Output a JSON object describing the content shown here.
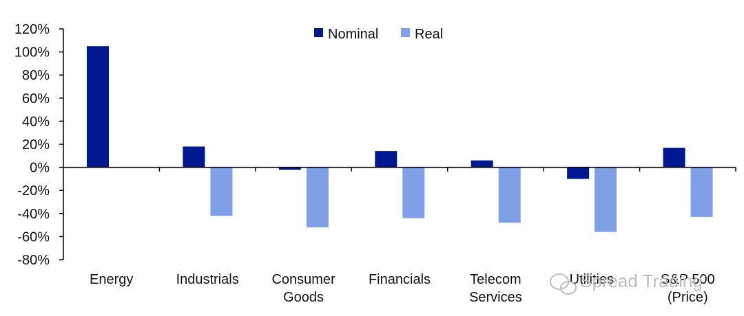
{
  "chart_data": {
    "type": "bar",
    "title": "",
    "xlabel": "",
    "ylabel": "",
    "ylim": [
      -80,
      120
    ],
    "yticks": [
      120,
      100,
      80,
      60,
      40,
      20,
      0,
      -20,
      -40,
      -60,
      -80
    ],
    "ytick_suffix": "%",
    "categories": [
      [
        "Energy"
      ],
      [
        "Industrials"
      ],
      [
        "Consumer",
        "Goods"
      ],
      [
        "Financials"
      ],
      [
        "Telecom",
        "Services"
      ],
      [
        "Utilities"
      ],
      [
        "S&P 500",
        "(Price)"
      ]
    ],
    "series": [
      {
        "name": "Nominal",
        "color": "#00188f",
        "values": [
          105,
          18,
          -2,
          14,
          6,
          -10,
          17
        ]
      },
      {
        "name": "Real",
        "color": "#7f9fe6",
        "values": [
          null,
          -42,
          -52,
          -44,
          -48,
          -56,
          -43
        ]
      }
    ],
    "legend": "top-center"
  },
  "watermark": {
    "text": "Spread Trading",
    "icon": "wechat-icon"
  }
}
